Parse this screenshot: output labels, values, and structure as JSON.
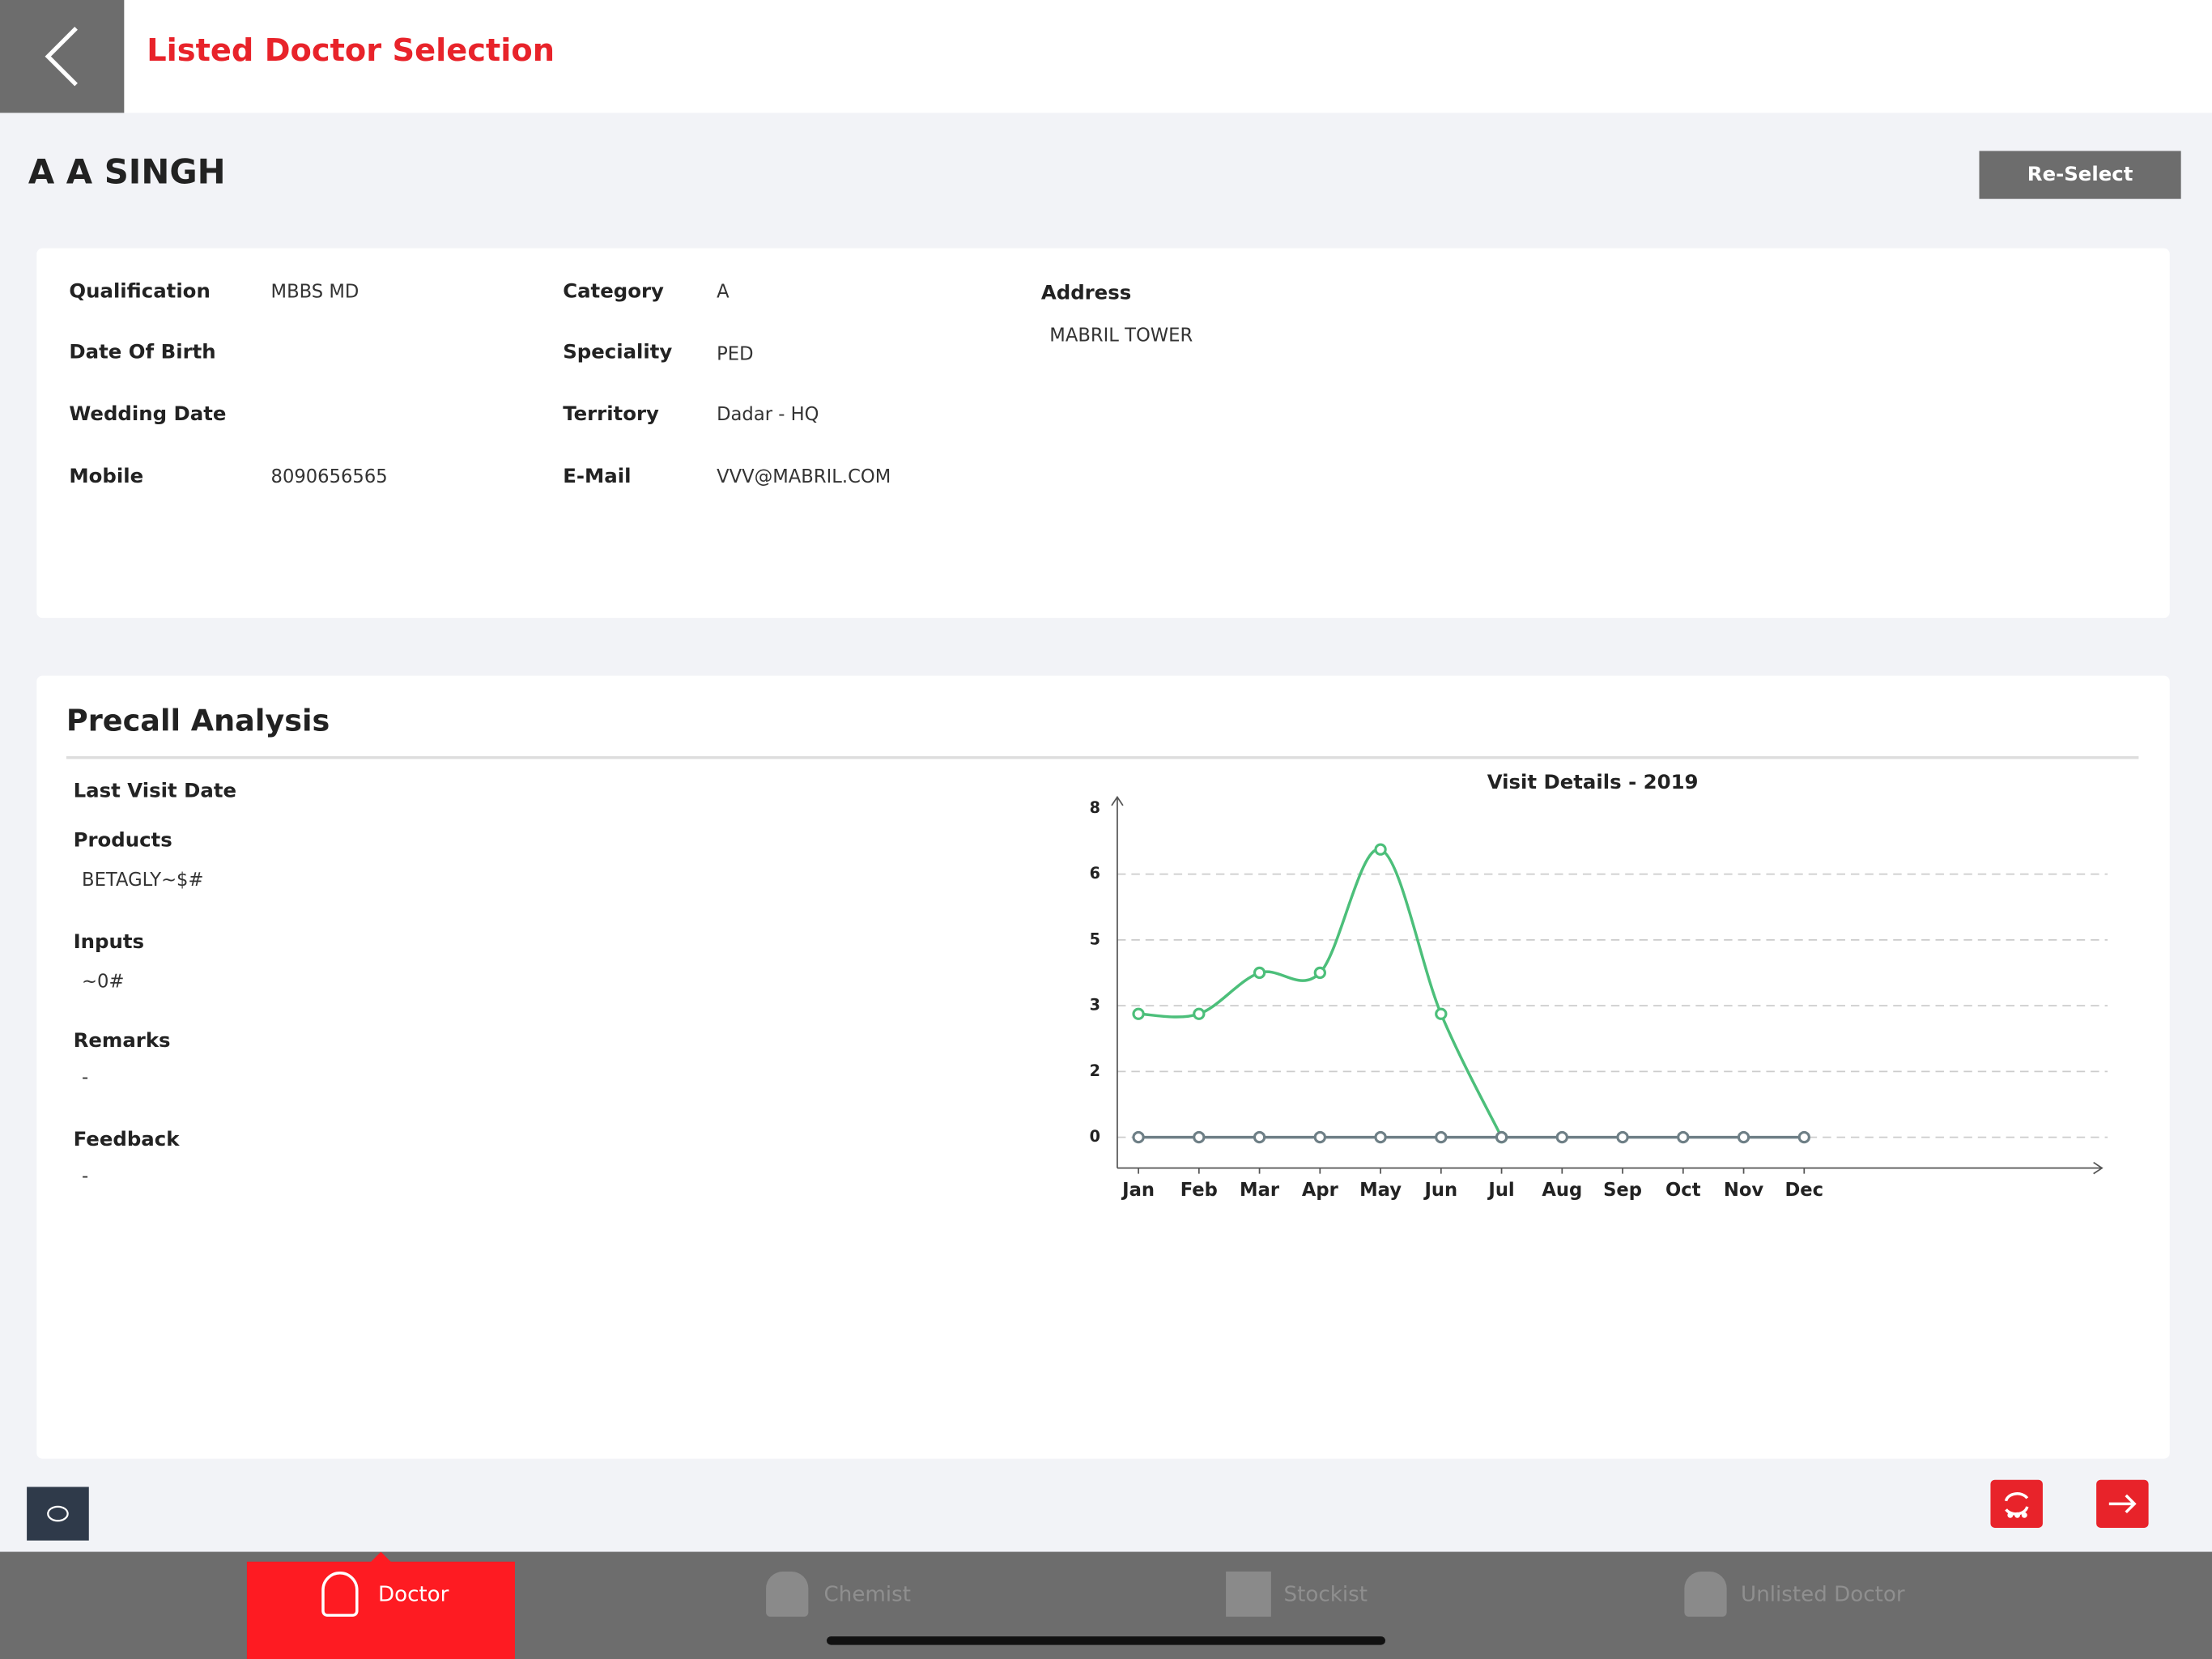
{
  "header": {
    "title": "Listed Doctor Selection"
  },
  "doctor": {
    "name": "A A SINGH",
    "reselect": "Re-Select"
  },
  "details": {
    "qualification": {
      "label": "Qualification",
      "value": "MBBS MD"
    },
    "dob": {
      "label": "Date Of Birth"
    },
    "wedding": {
      "label": "Wedding Date"
    },
    "mobile": {
      "label": "Mobile",
      "value": "8090656565"
    },
    "category": {
      "label": "Category",
      "value": "A"
    },
    "speciality": {
      "label": "Speciality",
      "value": "PED"
    },
    "territory": {
      "label": "Territory",
      "value": "Dadar - HQ"
    },
    "email": {
      "label": "E-Mail",
      "value": "VVV@MABRIL.COM"
    },
    "address": {
      "label": "Address",
      "value": "MABRIL TOWER"
    }
  },
  "precall": {
    "title": "Precall Analysis",
    "last_visit": {
      "label": "Last Visit Date"
    },
    "products": {
      "label": "Products",
      "value": "BETAGLY~$#"
    },
    "inputs": {
      "label": "Inputs",
      "value": "~0#"
    },
    "remarks": {
      "label": "Remarks",
      "value": "-"
    },
    "feedback": {
      "label": "Feedback",
      "value": "-"
    }
  },
  "chart_data": {
    "type": "line",
    "title": "Visit Details - 2019",
    "categories": [
      "Jan",
      "Feb",
      "Mar",
      "Apr",
      "May",
      "Jun",
      "Jul",
      "Aug",
      "Sep",
      "Oct",
      "Nov",
      "Dec"
    ],
    "series": [
      {
        "color": "#4cbf7a",
        "values": [
          3,
          3,
          4,
          4,
          7,
          3,
          0,
          null,
          null,
          null,
          null,
          null
        ]
      },
      {
        "color": "#6e7f86",
        "values": [
          0,
          0,
          0,
          0,
          0,
          0,
          0,
          0,
          0,
          0,
          0,
          0
        ]
      }
    ],
    "ylim": [
      -0.75,
      8
    ],
    "yticks": [
      0,
      {
        "value": 1.6,
        "label": "2"
      },
      {
        "value": 3.2,
        "label": "3"
      },
      {
        "value": 4.8,
        "label": "5"
      },
      {
        "value": 6.4,
        "label": "6"
      },
      8
    ],
    "grid": true
  },
  "tabs": [
    "Doctor",
    "Chemist",
    "Stockist",
    "Unlisted Doctor"
  ]
}
